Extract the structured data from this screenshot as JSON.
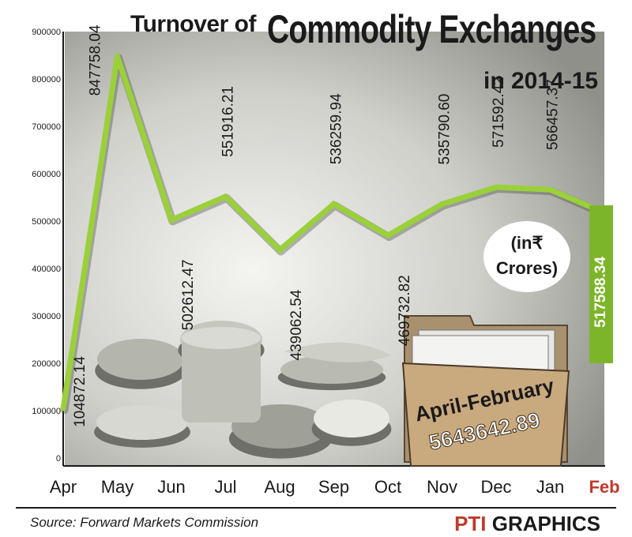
{
  "title": {
    "prefix": "Turnover of",
    "main": "Commodity Exchanges",
    "year": "in 2014-15"
  },
  "units_line1": "(in₹",
  "units_line2": "Crores)",
  "source": "Source: Forward Markets Commission",
  "logo": {
    "mark": "PTI",
    "text": "GRAPHICS"
  },
  "total_label": "April-February",
  "total_value": "5643642.89",
  "colors": {
    "line": "#9ad03a",
    "highlight_month": "#c0392b",
    "text": "#1a1a1a"
  },
  "chart_data": {
    "type": "line",
    "categories": [
      "Apr",
      "May",
      "Jun",
      "Jul",
      "Aug",
      "Sep",
      "Oct",
      "Nov",
      "Dec",
      "Jan",
      "Feb"
    ],
    "values": [
      104872.14,
      847758.04,
      502612.47,
      551916.21,
      439062.54,
      536259.94,
      469732.82,
      535790.6,
      571592.42,
      566457.37,
      517588.34
    ],
    "value_labels": [
      "104872.14",
      "847758.04",
      "502612.47",
      "551916.21",
      "439062.54",
      "536259.94",
      "469732.82",
      "535790.60",
      "571592.42",
      "566457.37",
      "517588.34"
    ],
    "highlight_category": "Feb",
    "ylim": [
      0,
      900000
    ],
    "yticks": [
      "0",
      "100000",
      "200000",
      "300000",
      "400000",
      "500000",
      "600000",
      "700000",
      "800000",
      "900000"
    ],
    "grid": false
  }
}
